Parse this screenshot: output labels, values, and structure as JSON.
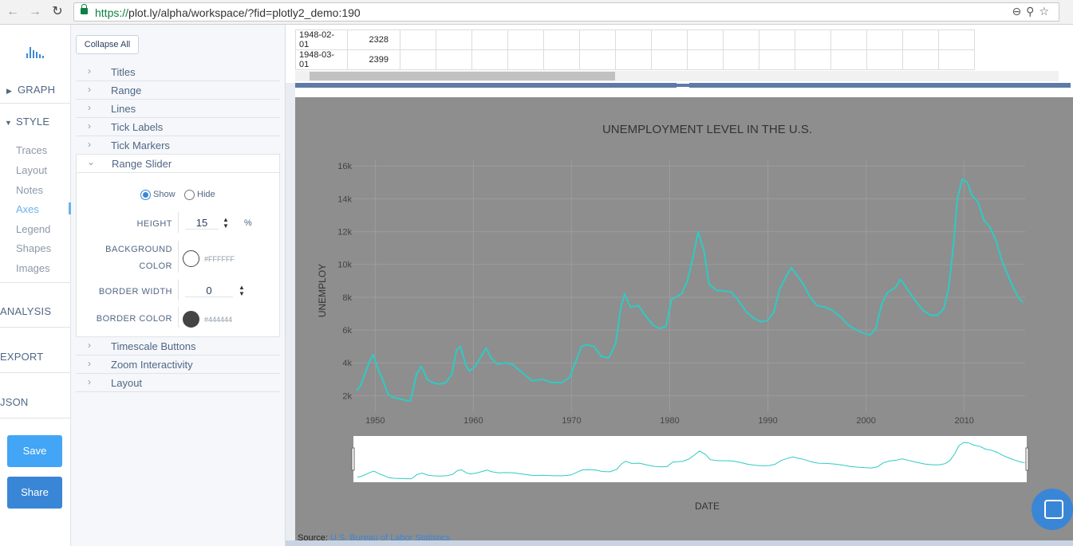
{
  "browser": {
    "url_protocol": "https://",
    "url_rest": "plot.ly/alpha/workspace/?fid=plotly2_demo:190",
    "back_icon": "arrow-left-icon",
    "forward_icon": "arrow-right-icon",
    "reload_icon": "reload-icon"
  },
  "nav": {
    "sections": [
      {
        "label": "GRAPH",
        "caret": "▶"
      },
      {
        "label": "STYLE",
        "caret": "▼"
      },
      {
        "label": "ANALYSIS",
        "caret": ""
      },
      {
        "label": "EXPORT",
        "caret": ""
      },
      {
        "label": "JSON",
        "caret": ""
      }
    ],
    "style_items": [
      "Traces",
      "Layout",
      "Notes",
      "Axes",
      "Legend",
      "Shapes",
      "Images"
    ],
    "active_item": "Axes",
    "save_label": "Save",
    "share_label": "Share"
  },
  "panel": {
    "collapse_all": "Collapse All",
    "folds_top": [
      "Titles",
      "Range",
      "Lines",
      "Tick Labels",
      "Tick Markers"
    ],
    "open_fold": "Range Slider",
    "show_label": "Show",
    "hide_label": "Hide",
    "height_label": "HEIGHT",
    "height_value": "15",
    "height_unit": "%",
    "bg_color_label_1": "BACKGROUND",
    "bg_color_label_2": "COLOR",
    "bg_color_value": "#FFFFFF",
    "border_width_label": "BORDER WIDTH",
    "border_width_value": "0",
    "border_color_label": "BORDER COLOR",
    "border_color_value": "#444444",
    "folds_bottom": [
      "Timescale Buttons",
      "Zoom Interactivity",
      "Layout"
    ]
  },
  "grid": {
    "rows": [
      {
        "date": "1948-02-01",
        "value": "2328"
      },
      {
        "date": "1948-03-01",
        "value": "2399"
      }
    ]
  },
  "colors": {
    "line": "#2ecbc4",
    "plot_bg": "#8e8e8e",
    "accent": "#3a86d6"
  },
  "chart_data": {
    "type": "line",
    "title": "UNEMPLOYMENT LEVEL IN THE U.S.",
    "xlabel": "DATE",
    "ylabel": "UNEMPLOY",
    "x_ticks": [
      "1950",
      "1960",
      "1970",
      "1980",
      "1990",
      "2000",
      "2010"
    ],
    "y_ticks": [
      "2k",
      "4k",
      "6k",
      "8k",
      "10k",
      "12k",
      "14k",
      "16k"
    ],
    "xlim": [
      1947.7,
      2016.2
    ],
    "ylim": [
      1000,
      16400
    ],
    "range_slider": true,
    "series": [
      {
        "x": [
          1948.1,
          1948.5,
          1949.0,
          1949.5,
          1949.8,
          1950.3,
          1950.8,
          1951.3,
          1951.8,
          1952.5,
          1953.2,
          1953.6,
          1954.2,
          1954.7,
          1955.3,
          1955.8,
          1956.5,
          1957.2,
          1957.8,
          1958.3,
          1958.7,
          1959.2,
          1959.6,
          1960.2,
          1960.8,
          1961.3,
          1961.8,
          1962.5,
          1963.2,
          1964.0,
          1965.0,
          1966.0,
          1967.0,
          1968.0,
          1969.0,
          1969.8,
          1970.5,
          1971.0,
          1971.5,
          1972.3,
          1973.0,
          1973.8,
          1974.5,
          1975.0,
          1975.4,
          1976.0,
          1976.8,
          1977.5,
          1978.3,
          1979.0,
          1979.6,
          1980.2,
          1980.6,
          1981.2,
          1981.8,
          1982.4,
          1982.9,
          1983.5,
          1984.0,
          1984.8,
          1985.5,
          1986.3,
          1987.0,
          1987.8,
          1988.6,
          1989.3,
          1990.0,
          1990.6,
          1991.2,
          1991.8,
          1992.4,
          1993.0,
          1993.6,
          1994.3,
          1995.0,
          1995.8,
          1996.6,
          1997.4,
          1998.2,
          1999.0,
          1999.8,
          2000.4,
          2001.0,
          2001.6,
          2002.2,
          2003.0,
          2003.5,
          2004.2,
          2005.0,
          2005.8,
          2006.6,
          2007.3,
          2007.9,
          2008.4,
          2008.9,
          2009.3,
          2009.8,
          2010.3,
          2010.8,
          2011.4,
          2012.0,
          2012.6,
          2013.2,
          2013.8,
          2014.4,
          2015.0,
          2015.6,
          2016.0
        ],
        "y": [
          2300,
          2600,
          3400,
          4200,
          4500,
          3600,
          2900,
          2100,
          1900,
          1800,
          1700,
          1700,
          3300,
          3800,
          3000,
          2800,
          2700,
          2800,
          3300,
          4800,
          5000,
          3900,
          3500,
          3800,
          4400,
          4900,
          4300,
          3900,
          4000,
          3900,
          3400,
          2900,
          3000,
          2800,
          2800,
          3100,
          4200,
          5000,
          5100,
          5000,
          4400,
          4300,
          5200,
          7300,
          8200,
          7400,
          7500,
          6900,
          6300,
          6100,
          6200,
          7900,
          8000,
          8200,
          9000,
          10500,
          12000,
          10800,
          8800,
          8400,
          8400,
          8300,
          7800,
          7100,
          6700,
          6500,
          6600,
          7100,
          8500,
          9200,
          9800,
          9300,
          8800,
          8000,
          7500,
          7400,
          7200,
          6800,
          6300,
          6000,
          5800,
          5700,
          6100,
          7600,
          8300,
          8600,
          9100,
          8500,
          7800,
          7200,
          6900,
          6900,
          7300,
          8500,
          11200,
          14000,
          15200,
          15000,
          14200,
          13800,
          12700,
          12300,
          11500,
          10300,
          9400,
          8600,
          7900,
          7700
        ]
      }
    ]
  },
  "source": {
    "prefix": "Source:",
    "link": "U.S. Bureau of Labor Statistics"
  }
}
